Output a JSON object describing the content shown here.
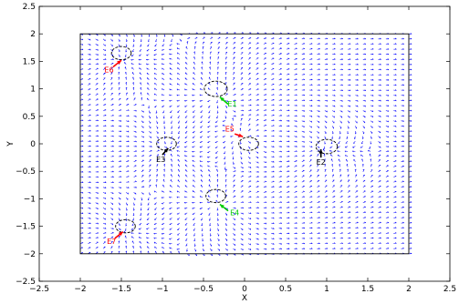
{
  "chart_data": {
    "type": "quiver",
    "title": "",
    "xlabel": "X",
    "ylabel": "Y",
    "xlim": [
      -2.5,
      2.5
    ],
    "ylim": [
      -2.5,
      2.5
    ],
    "xticks": [
      -2.5,
      -2,
      -1.5,
      -1,
      -0.5,
      0,
      0.5,
      1,
      1.5,
      2,
      2.5
    ],
    "yticks": [
      -2.5,
      -2,
      -1.5,
      -1,
      -0.5,
      0,
      0.5,
      1,
      1.5,
      2,
      2.5
    ],
    "xtick_labels": [
      "−2.5",
      "−2",
      "−1.5",
      "−1",
      "−0.5",
      "0",
      "0.5",
      "1",
      "1.5",
      "2",
      "2.5"
    ],
    "ytick_labels": [
      "−2.5",
      "−2",
      "−1.5",
      "−1",
      "−0.5",
      "0",
      "0.5",
      "1",
      "1.5",
      "2",
      "2.5"
    ],
    "grid": false,
    "field": {
      "x_range": [
        -2,
        2
      ],
      "y_range": [
        -2,
        2
      ],
      "color": "#0000ff"
    },
    "circles": [
      {
        "center": [
          -1.5,
          1.65
        ],
        "radius": 0.12
      },
      {
        "center": [
          -0.35,
          1.0
        ],
        "radius": 0.14
      },
      {
        "center": [
          -0.95,
          0.0
        ],
        "radius": 0.12
      },
      {
        "center": [
          0.05,
          0.0
        ],
        "radius": 0.12
      },
      {
        "center": [
          1.0,
          -0.05
        ],
        "radius": 0.13
      },
      {
        "center": [
          -0.35,
          -0.95
        ],
        "radius": 0.12
      },
      {
        "center": [
          -1.45,
          -1.5
        ],
        "radius": 0.12
      }
    ],
    "markers": [
      {
        "id": "E1",
        "label": "E1",
        "color": "#00cc00",
        "tip": [
          -0.3,
          0.85
        ],
        "tail": [
          -0.2,
          0.72
        ],
        "label_pos": [
          -0.15,
          0.68
        ]
      },
      {
        "id": "E2",
        "label": "E2",
        "color": "#000000",
        "tip": [
          0.93,
          -0.1
        ],
        "tail": [
          0.93,
          -0.25
        ],
        "label_pos": [
          0.93,
          -0.38
        ]
      },
      {
        "id": "E3",
        "label": "E3",
        "color": "#000000",
        "tip": [
          -0.93,
          -0.08
        ],
        "tail": [
          -1.0,
          -0.2
        ],
        "label_pos": [
          -1.02,
          -0.33
        ]
      },
      {
        "id": "E4",
        "label": "E4",
        "color": "#00cc00",
        "tip": [
          -0.3,
          -1.1
        ],
        "tail": [
          -0.2,
          -1.22
        ],
        "label_pos": [
          -0.12,
          -1.3
        ]
      },
      {
        "id": "E5",
        "label": "E5",
        "color": "#ff0000",
        "tip": [
          -0.02,
          0.13
        ],
        "tail": [
          -0.12,
          0.18
        ],
        "label_pos": [
          -0.18,
          0.22
        ]
      },
      {
        "id": "E6",
        "label": "E6",
        "color": "#ff0000",
        "tip": [
          -1.5,
          1.52
        ],
        "tail": [
          -1.6,
          1.4
        ],
        "label_pos": [
          -1.65,
          1.3
        ]
      },
      {
        "id": "E7",
        "label": "E7",
        "color": "#ff0000",
        "tip": [
          -1.48,
          -1.6
        ],
        "tail": [
          -1.58,
          -1.72
        ],
        "label_pos": [
          -1.62,
          -1.82
        ]
      }
    ]
  }
}
